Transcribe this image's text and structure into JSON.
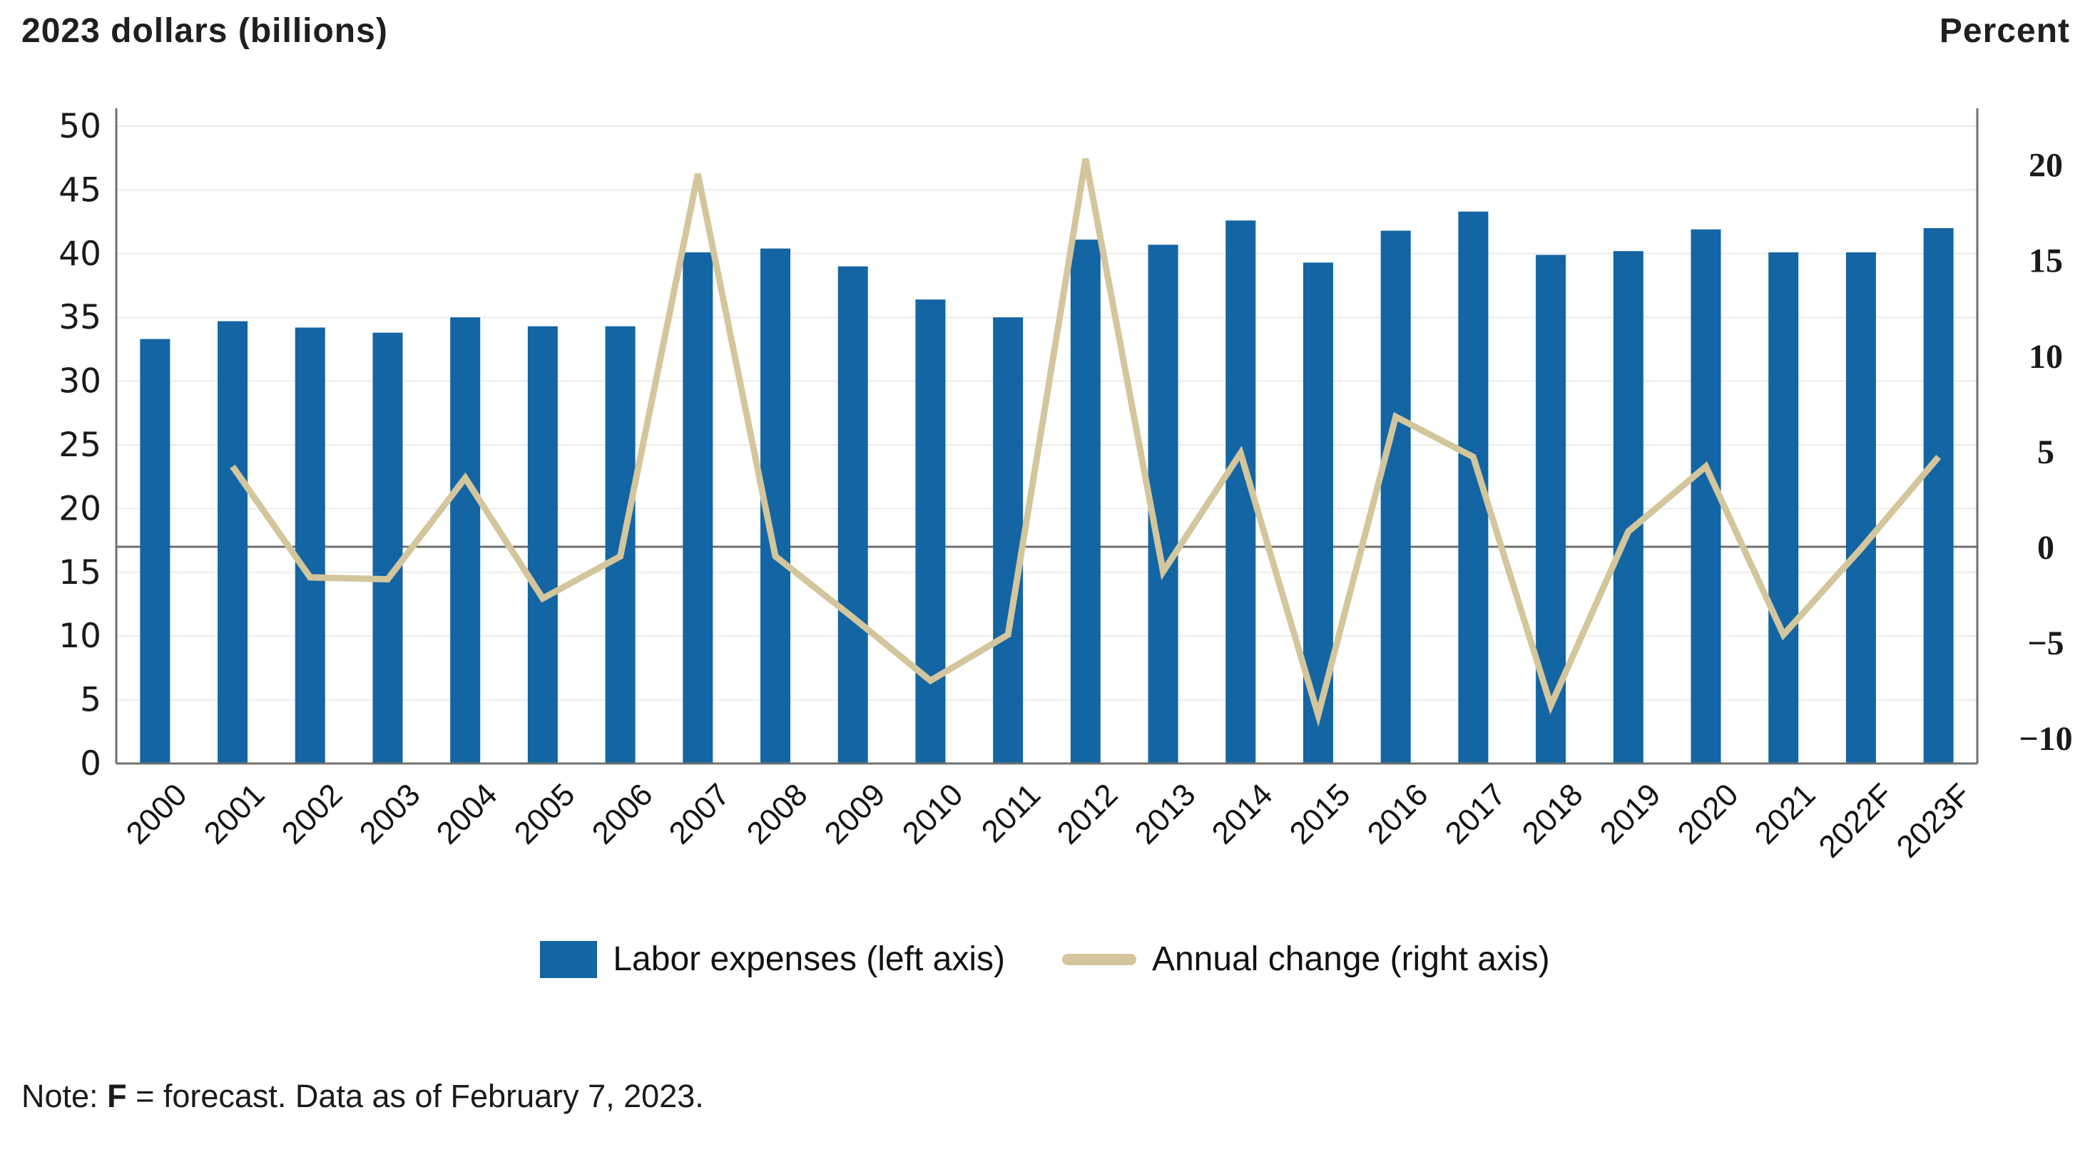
{
  "titles": {
    "left_axis_title": "2023 dollars (billions)",
    "right_axis_title": "Percent"
  },
  "legend": {
    "bar_label": "Labor expenses (left axis)",
    "line_label": "Annual change (right axis)"
  },
  "note": {
    "prefix": "Note: ",
    "bold_term": "F",
    "rest": " = forecast. Data as of February 7, 2023."
  },
  "colors": {
    "bar": "#1365a4",
    "line": "#d4c69c",
    "grid": "#ebebeb",
    "axis": "#707070",
    "zero_line": "#6f6f6f",
    "text": "#1a1a1a"
  },
  "chart_data": {
    "type": "bar",
    "subtype": "bar-plus-line-dual-axis",
    "title": "",
    "categories": [
      "2000",
      "2001",
      "2002",
      "2003",
      "2004",
      "2005",
      "2006",
      "2007",
      "2008",
      "2009",
      "2010",
      "2011",
      "2012",
      "2013",
      "2014",
      "2015",
      "2016",
      "2017",
      "2018",
      "2019",
      "2020",
      "2021",
      "2022F",
      "2023F"
    ],
    "series": [
      {
        "name": "Labor expenses (left axis)",
        "type": "bar",
        "axis": "left",
        "values": [
          33.3,
          34.7,
          34.2,
          33.8,
          35.0,
          34.3,
          34.3,
          40.1,
          40.4,
          39.0,
          36.4,
          35.0,
          41.1,
          40.7,
          42.6,
          39.3,
          41.8,
          43.3,
          39.9,
          40.2,
          41.9,
          40.1,
          40.1,
          42.0
        ]
      },
      {
        "name": "Annual change (right axis)",
        "type": "line",
        "axis": "right",
        "values": [
          null,
          4.2,
          -1.6,
          -1.7,
          3.6,
          -2.7,
          -0.5,
          19.5,
          -0.5,
          -3.7,
          -7.0,
          -4.6,
          20.3,
          -1.3,
          4.9,
          -8.8,
          6.8,
          4.7,
          -8.3,
          0.8,
          4.2,
          -4.6,
          -0.1,
          4.7
        ]
      }
    ],
    "left_axis": {
      "label": "2023 dollars (billions)",
      "ticks": [
        0,
        5,
        10,
        15,
        20,
        25,
        30,
        35,
        40,
        45,
        50
      ],
      "range": [
        0,
        50
      ]
    },
    "right_axis": {
      "label": "Percent",
      "ticks": [
        {
          "label": "20",
          "value": 20
        },
        {
          "label": "15",
          "value": 15
        },
        {
          "label": "10",
          "value": 10
        },
        {
          "label": "5",
          "value": 5
        },
        {
          "label": "0",
          "value": 0
        },
        {
          "label": "−5",
          "value": -5
        },
        {
          "label": "−10",
          "value": -10
        }
      ],
      "zero_line_shown": true
    },
    "grid": true,
    "legend_position": "bottom",
    "notes": "F = forecast. Data as of February 7, 2023."
  }
}
